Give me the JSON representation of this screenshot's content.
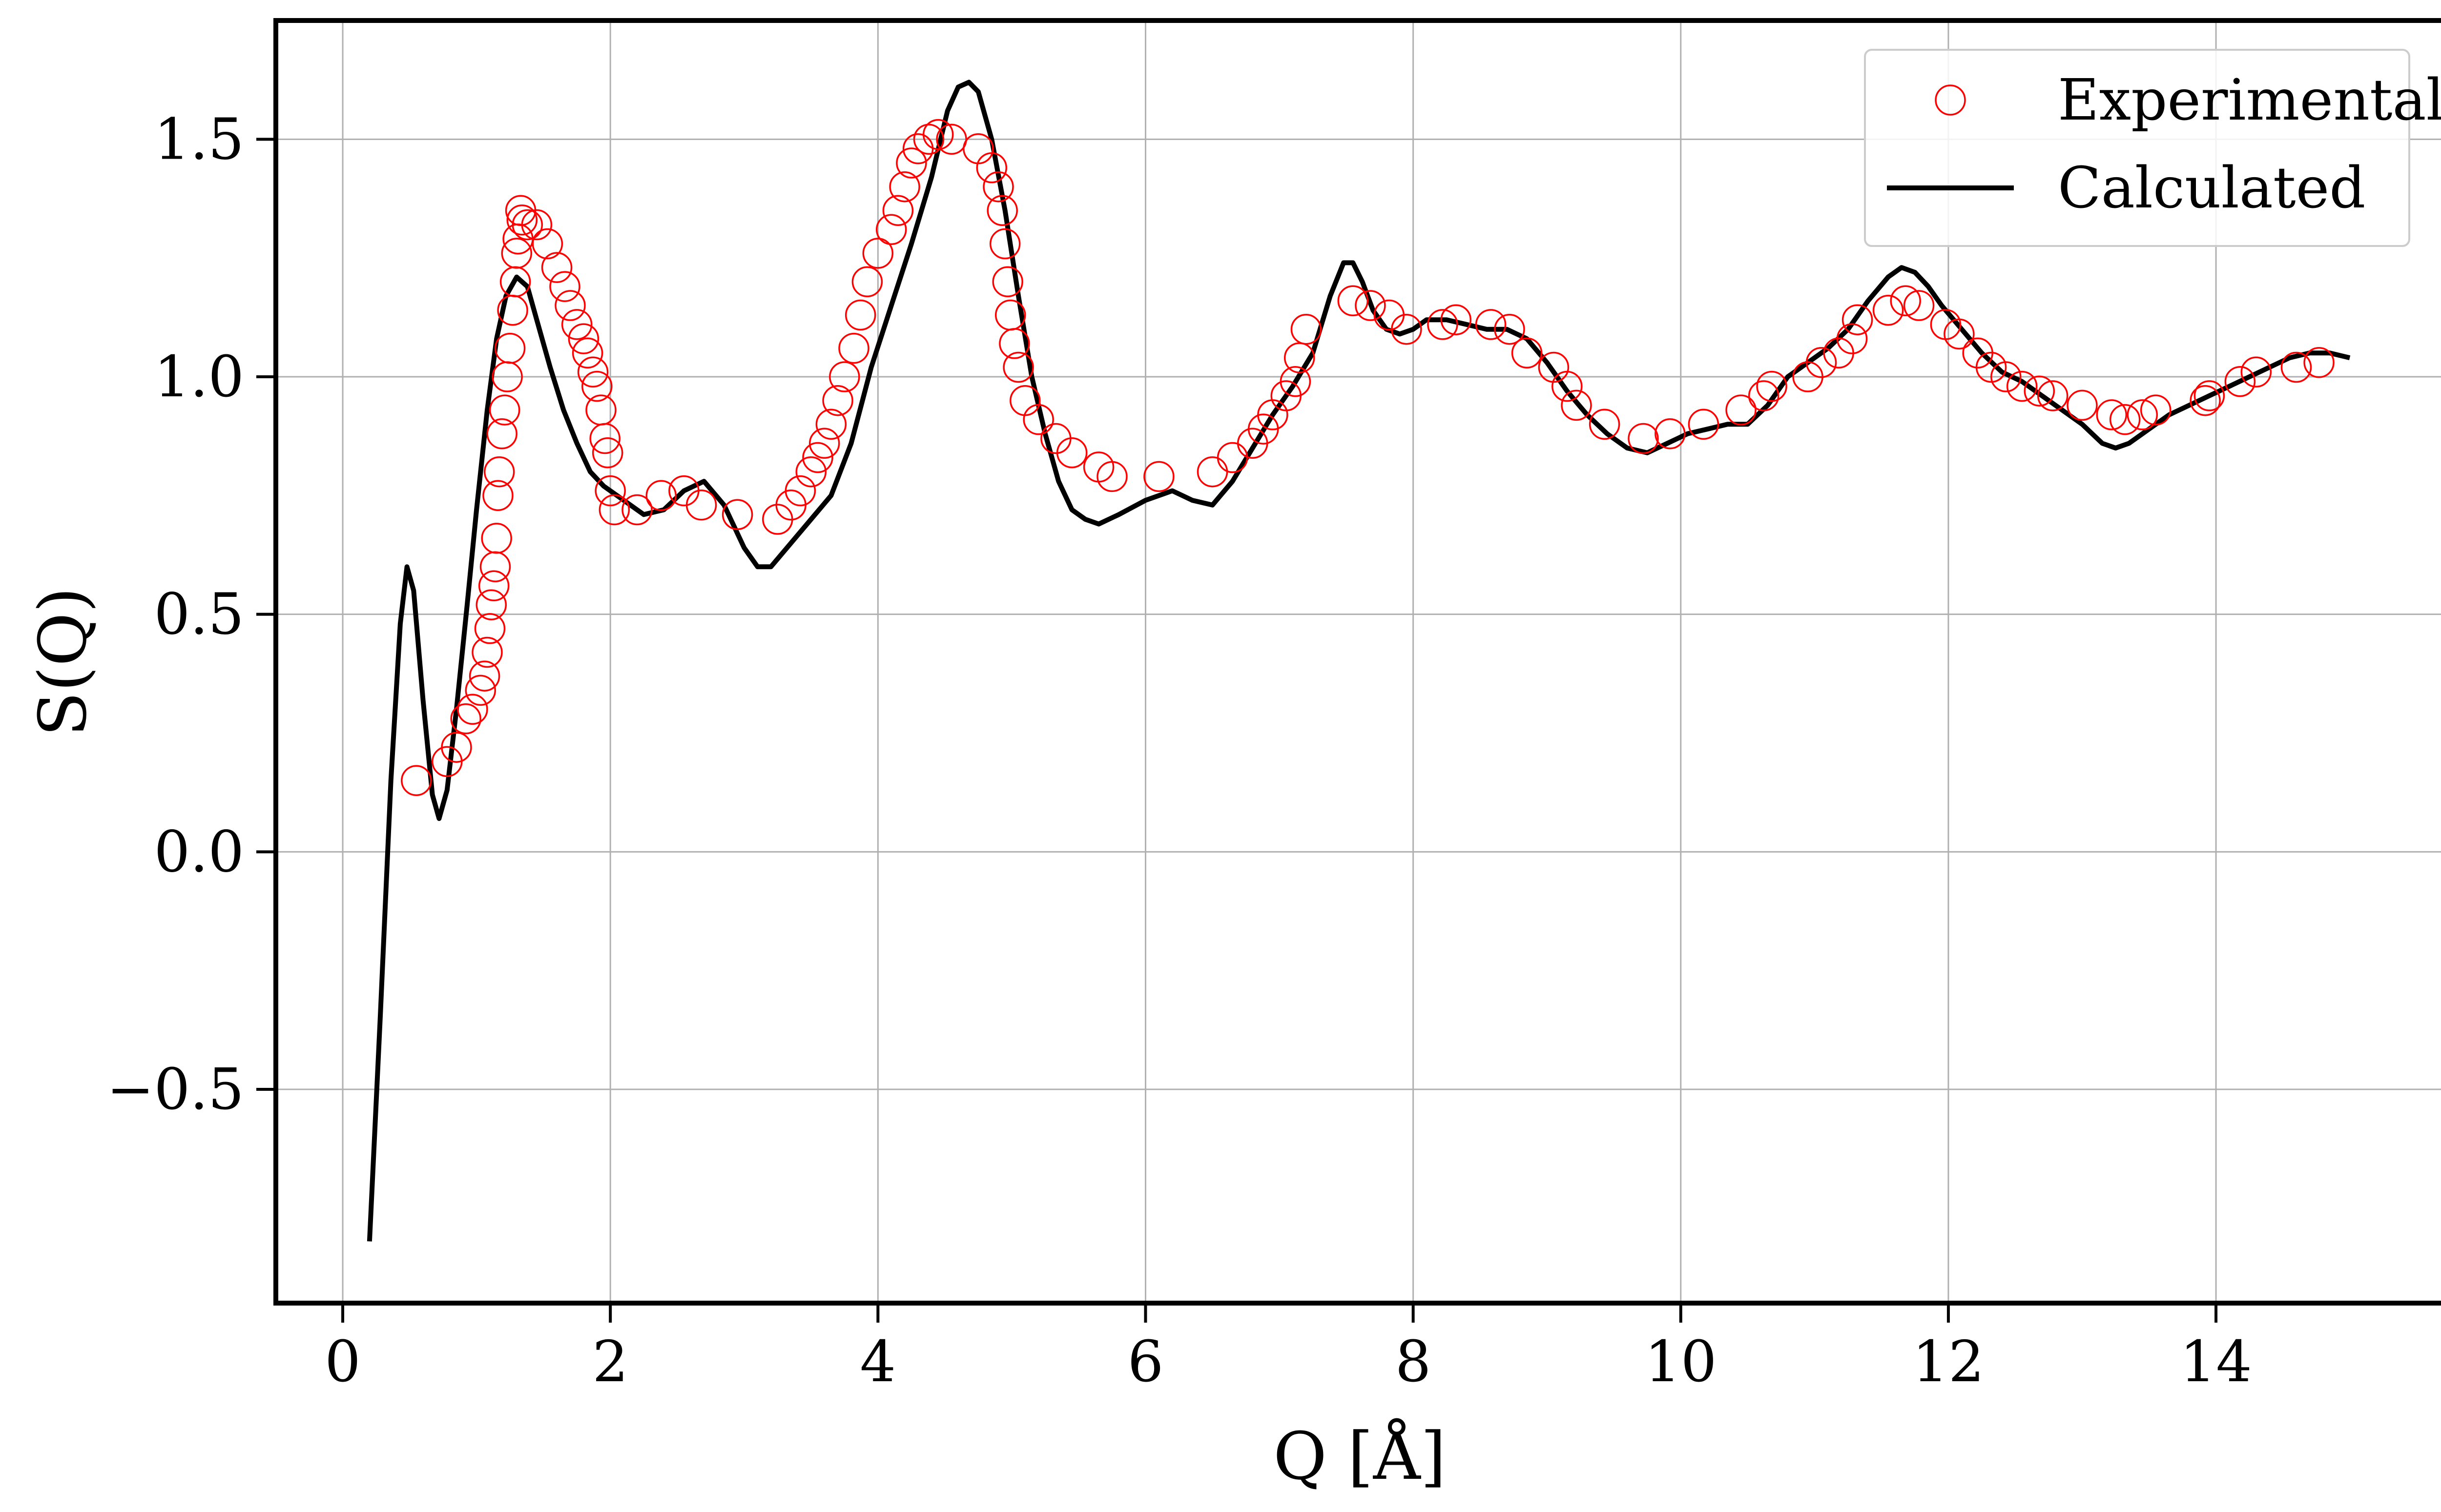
{
  "chart_data": {
    "type": "line",
    "xlabel": "Q [Å]",
    "ylabel": "S(Q)",
    "xlim": [
      -0.5,
      15.7
    ],
    "ylim": [
      -0.95,
      1.75
    ],
    "xticks": [
      0,
      2,
      4,
      6,
      8,
      10,
      12,
      14
    ],
    "yticks": [
      -0.5,
      0.0,
      0.5,
      1.0,
      1.5
    ],
    "xtick_labels": [
      "0",
      "2",
      "4",
      "6",
      "8",
      "10",
      "12",
      "14"
    ],
    "ytick_labels": [
      "−0.5",
      "0.0",
      "0.5",
      "1.0",
      "1.5"
    ],
    "grid": true,
    "legend_position": "top-right",
    "colors": {
      "experimental": "#ff0000",
      "calculated": "#000000"
    },
    "series": [
      {
        "name": "Experimental",
        "kind": "scatter",
        "marker": "open-circle",
        "x": [
          0.55,
          0.78,
          0.85,
          0.92,
          0.97,
          1.03,
          1.06,
          1.08,
          1.1,
          1.11,
          1.13,
          1.14,
          1.15,
          1.16,
          1.17,
          1.19,
          1.21,
          1.23,
          1.25,
          1.27,
          1.29,
          1.3,
          1.31,
          1.33,
          1.34,
          1.38,
          1.45,
          1.53,
          1.6,
          1.66,
          1.7,
          1.75,
          1.8,
          1.83,
          1.87,
          1.9,
          1.93,
          1.96,
          1.98,
          2.0,
          2.03,
          2.2,
          2.38,
          2.55,
          2.68,
          2.95,
          3.25,
          3.35,
          3.42,
          3.5,
          3.55,
          3.6,
          3.65,
          3.7,
          3.75,
          3.82,
          3.87,
          3.92,
          4.0,
          4.1,
          4.15,
          4.2,
          4.25,
          4.3,
          4.38,
          4.45,
          4.55,
          4.75,
          4.85,
          4.9,
          4.93,
          4.95,
          4.97,
          4.99,
          5.02,
          5.05,
          5.1,
          5.2,
          5.33,
          5.45,
          5.65,
          5.75,
          6.1,
          6.5,
          6.65,
          6.8,
          6.88,
          6.95,
          7.05,
          7.12,
          7.15,
          7.2,
          7.55,
          7.68,
          7.82,
          7.95,
          8.22,
          8.32,
          8.58,
          8.72,
          8.85,
          9.05,
          9.15,
          9.22,
          9.43,
          9.72,
          9.92,
          10.17,
          10.45,
          10.62,
          10.68,
          10.95,
          11.05,
          11.18,
          11.28,
          11.32,
          11.55,
          11.68,
          11.78,
          11.98,
          12.08,
          12.22,
          12.32,
          12.43,
          12.55,
          12.68,
          12.78,
          13.0,
          13.22,
          13.32,
          13.45,
          13.55,
          13.92,
          13.95,
          14.18,
          14.3,
          14.6,
          14.77
        ],
        "y": [
          0.15,
          0.19,
          0.22,
          0.28,
          0.3,
          0.34,
          0.37,
          0.42,
          0.47,
          0.52,
          0.56,
          0.6,
          0.66,
          0.75,
          0.8,
          0.88,
          0.93,
          1.0,
          1.06,
          1.14,
          1.2,
          1.26,
          1.29,
          1.35,
          1.33,
          1.32,
          1.32,
          1.28,
          1.23,
          1.19,
          1.15,
          1.11,
          1.08,
          1.05,
          1.01,
          0.98,
          0.93,
          0.87,
          0.84,
          0.76,
          0.72,
          0.72,
          0.75,
          0.76,
          0.73,
          0.71,
          0.7,
          0.73,
          0.76,
          0.8,
          0.83,
          0.86,
          0.9,
          0.95,
          1.0,
          1.06,
          1.13,
          1.2,
          1.26,
          1.31,
          1.35,
          1.4,
          1.45,
          1.48,
          1.5,
          1.51,
          1.5,
          1.48,
          1.44,
          1.4,
          1.35,
          1.28,
          1.2,
          1.13,
          1.07,
          1.02,
          0.95,
          0.91,
          0.87,
          0.84,
          0.81,
          0.79,
          0.79,
          0.8,
          0.83,
          0.86,
          0.89,
          0.92,
          0.96,
          0.99,
          1.04,
          1.1,
          1.16,
          1.15,
          1.13,
          1.1,
          1.11,
          1.12,
          1.11,
          1.1,
          1.05,
          1.02,
          0.98,
          0.94,
          0.9,
          0.87,
          0.88,
          0.9,
          0.93,
          0.96,
          0.98,
          1.0,
          1.03,
          1.05,
          1.08,
          1.12,
          1.14,
          1.16,
          1.15,
          1.11,
          1.09,
          1.05,
          1.02,
          1.0,
          0.98,
          0.97,
          0.96,
          0.94,
          0.92,
          0.91,
          0.92,
          0.93,
          0.95,
          0.96,
          0.99,
          1.01,
          1.02,
          1.03
        ]
      },
      {
        "name": "Calculated",
        "kind": "line",
        "x": [
          0.2,
          0.28,
          0.36,
          0.43,
          0.48,
          0.53,
          0.6,
          0.67,
          0.72,
          0.78,
          0.85,
          0.93,
          1.0,
          1.08,
          1.15,
          1.22,
          1.3,
          1.38,
          1.45,
          1.55,
          1.65,
          1.75,
          1.85,
          1.95,
          2.1,
          2.25,
          2.4,
          2.55,
          2.7,
          2.85,
          3.0,
          3.1,
          3.2,
          3.35,
          3.5,
          3.65,
          3.8,
          3.95,
          4.1,
          4.25,
          4.4,
          4.52,
          4.6,
          4.68,
          4.75,
          4.85,
          4.95,
          5.05,
          5.15,
          5.25,
          5.35,
          5.45,
          5.55,
          5.65,
          5.8,
          6.0,
          6.2,
          6.35,
          6.5,
          6.65,
          6.8,
          6.95,
          7.1,
          7.25,
          7.38,
          7.48,
          7.55,
          7.62,
          7.7,
          7.8,
          7.9,
          8.0,
          8.1,
          8.25,
          8.4,
          8.55,
          8.7,
          8.85,
          9.0,
          9.15,
          9.3,
          9.45,
          9.6,
          9.75,
          9.9,
          10.05,
          10.2,
          10.35,
          10.5,
          10.65,
          10.8,
          10.95,
          11.1,
          11.25,
          11.4,
          11.55,
          11.65,
          11.75,
          11.85,
          11.95,
          12.1,
          12.25,
          12.4,
          12.55,
          12.7,
          12.85,
          13.0,
          13.15,
          13.25,
          13.35,
          13.5,
          13.65,
          13.8,
          13.95,
          14.1,
          14.25,
          14.4,
          14.55,
          14.7,
          14.85,
          15.0
        ],
        "y": [
          -0.82,
          -0.35,
          0.15,
          0.48,
          0.6,
          0.55,
          0.32,
          0.12,
          0.07,
          0.13,
          0.3,
          0.52,
          0.72,
          0.93,
          1.08,
          1.17,
          1.21,
          1.19,
          1.12,
          1.02,
          0.93,
          0.86,
          0.8,
          0.77,
          0.74,
          0.71,
          0.72,
          0.76,
          0.78,
          0.73,
          0.64,
          0.6,
          0.6,
          0.65,
          0.7,
          0.75,
          0.86,
          1.02,
          1.15,
          1.28,
          1.42,
          1.56,
          1.61,
          1.62,
          1.6,
          1.5,
          1.35,
          1.17,
          1.0,
          0.88,
          0.78,
          0.72,
          0.7,
          0.69,
          0.71,
          0.74,
          0.76,
          0.74,
          0.73,
          0.78,
          0.85,
          0.92,
          0.98,
          1.05,
          1.17,
          1.24,
          1.24,
          1.2,
          1.14,
          1.1,
          1.09,
          1.1,
          1.12,
          1.12,
          1.11,
          1.1,
          1.1,
          1.08,
          1.03,
          0.97,
          0.92,
          0.88,
          0.85,
          0.84,
          0.86,
          0.88,
          0.89,
          0.9,
          0.9,
          0.94,
          1.0,
          1.03,
          1.06,
          1.1,
          1.16,
          1.21,
          1.23,
          1.22,
          1.19,
          1.15,
          1.1,
          1.05,
          1.01,
          0.99,
          0.96,
          0.93,
          0.9,
          0.86,
          0.85,
          0.86,
          0.89,
          0.92,
          0.94,
          0.96,
          0.98,
          1.0,
          1.02,
          1.04,
          1.05,
          1.05,
          1.04
        ]
      }
    ]
  }
}
